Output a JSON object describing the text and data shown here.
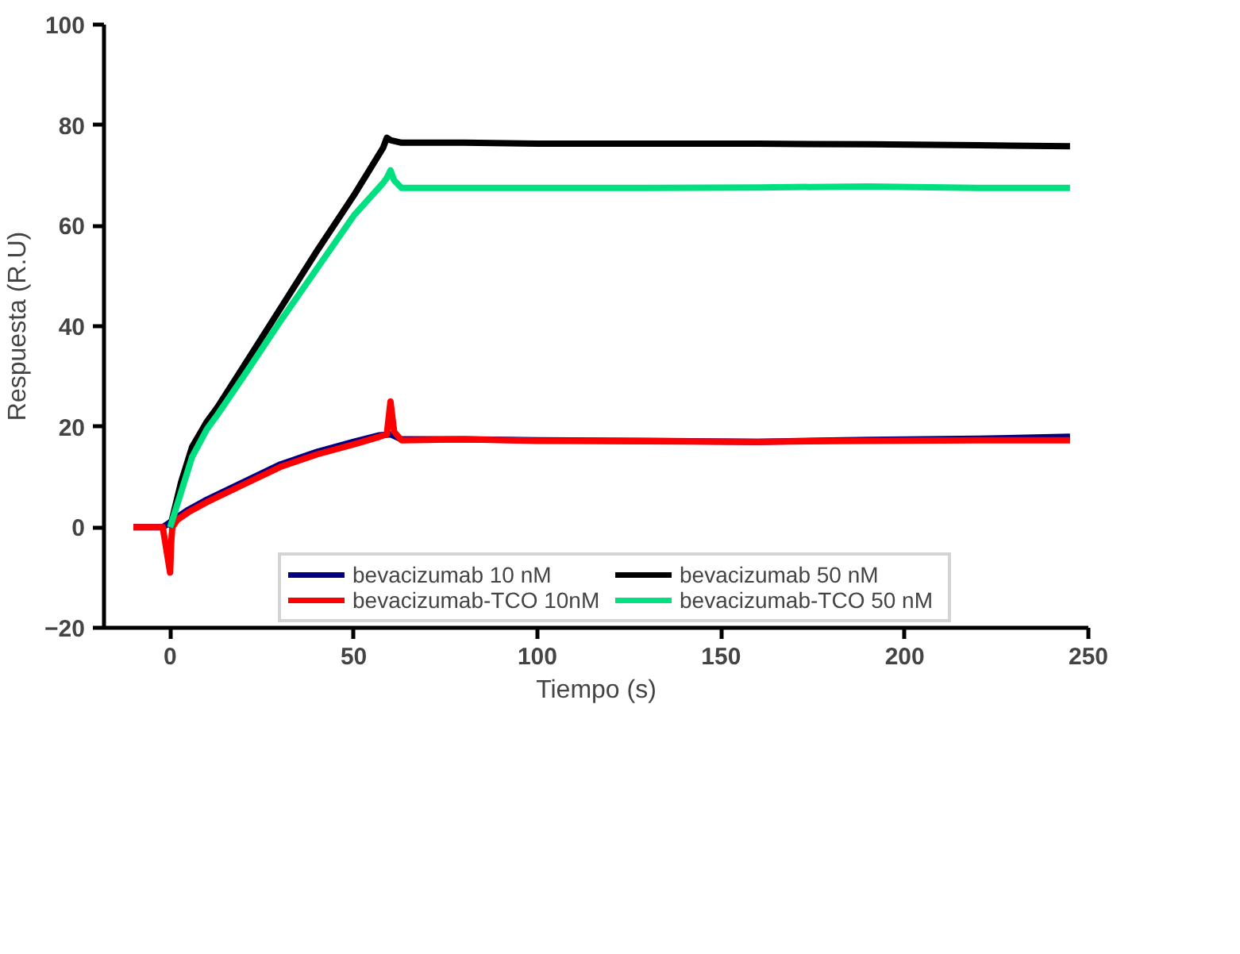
{
  "chart_data": {
    "type": "line",
    "xlabel": "Tiempo (s)",
    "ylabel": "Respuesta (R.U)",
    "xlim": [
      -18,
      250
    ],
    "ylim": [
      -20,
      100
    ],
    "xticks": [
      0,
      50,
      100,
      150,
      200,
      250
    ],
    "yticks": [
      -20,
      0,
      20,
      40,
      60,
      80,
      100
    ],
    "grid": false,
    "legend": "bottom",
    "marker": "none",
    "line_style": "solid",
    "series": [
      {
        "name": "bevacizumab 10 nM",
        "color": "#000080",
        "x": [
          -10,
          -2,
          0,
          0.5,
          2,
          5,
          10,
          20,
          30,
          40,
          50,
          57,
          60,
          63,
          80,
          100,
          130,
          160,
          190,
          220,
          245
        ],
        "values": [
          0,
          0,
          1,
          0,
          2,
          3.5,
          5.5,
          9,
          12.5,
          15,
          17,
          18.3,
          18.5,
          17.5,
          17.5,
          17.3,
          17.2,
          17,
          17.4,
          17.6,
          18
        ]
      },
      {
        "name": "bevacizumab-TCO 10nM",
        "color": "#ff0000",
        "x": [
          -10,
          -2,
          0,
          0.3,
          0.6,
          2,
          5,
          10,
          20,
          30,
          40,
          50,
          57,
          59,
          60,
          61,
          63,
          80,
          100,
          130,
          160,
          190,
          220,
          245
        ],
        "values": [
          0,
          0,
          -9,
          -3,
          0,
          1.5,
          3,
          5,
          8.5,
          12,
          14.5,
          16.5,
          18,
          18.5,
          25,
          19,
          17.3,
          17.5,
          17.2,
          17.1,
          17,
          17.2,
          17.3,
          17.3
        ]
      },
      {
        "name": "bevacizumab 50 nM",
        "color": "#000000",
        "x": [
          0,
          3,
          6,
          10,
          13,
          20,
          30,
          40,
          50,
          58,
          59,
          60,
          63,
          80,
          100,
          130,
          160,
          190,
          220,
          245
        ],
        "values": [
          0,
          9,
          16,
          21,
          24,
          32,
          43.5,
          55,
          66,
          75.5,
          77.5,
          77,
          76.5,
          76.5,
          76.3,
          76.3,
          76.3,
          76.2,
          76,
          75.8
        ]
      },
      {
        "name": "bevacizumab-TCO 50 nM",
        "color": "#00e080",
        "x": [
          0,
          3,
          6,
          10,
          13,
          20,
          30,
          40,
          50,
          58,
          59,
          60,
          61,
          63,
          80,
          100,
          130,
          160,
          190,
          220,
          245
        ],
        "values": [
          0,
          7,
          14,
          19.5,
          22.5,
          30,
          41,
          51.5,
          62,
          68.5,
          69.5,
          71,
          69,
          67.5,
          67.5,
          67.5,
          67.5,
          67.6,
          67.8,
          67.5,
          67.5
        ]
      }
    ]
  }
}
